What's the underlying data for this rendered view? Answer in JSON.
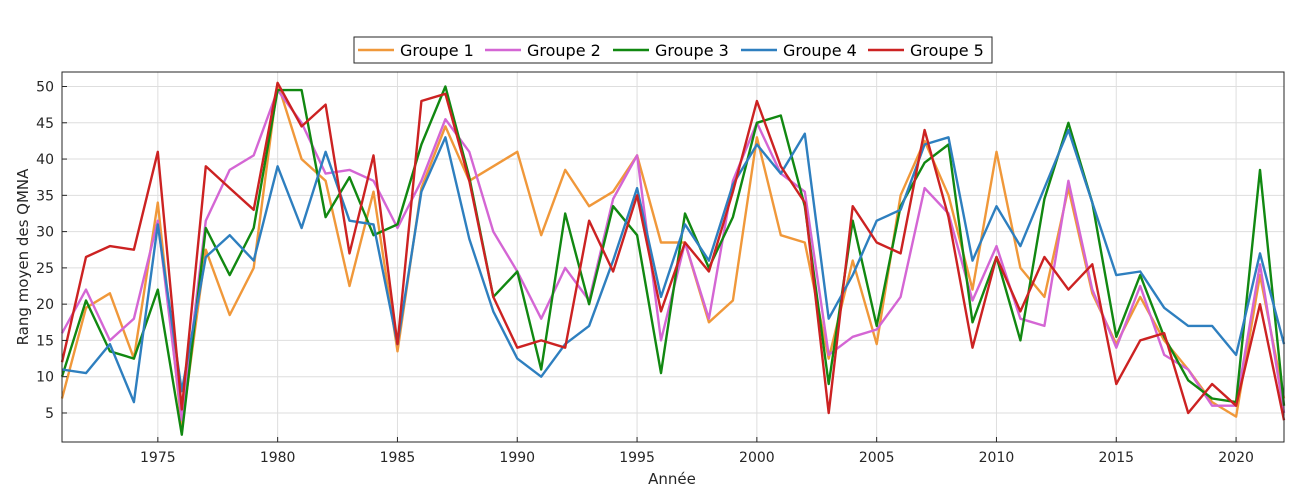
{
  "chart_data": {
    "type": "line",
    "xlabel": "Année",
    "ylabel": "Rang moyen des QMNA",
    "xlim": [
      1971,
      2022
    ],
    "ylim": [
      1,
      52
    ],
    "xticks": [
      1975,
      1980,
      1985,
      1990,
      1995,
      2000,
      2005,
      2010,
      2015,
      2020
    ],
    "yticks": [
      5,
      10,
      15,
      20,
      25,
      30,
      35,
      40,
      45,
      50
    ],
    "grid": true,
    "legend_position": "top-center",
    "x": [
      1971,
      1972,
      1973,
      1974,
      1975,
      1976,
      1977,
      1978,
      1979,
      1980,
      1981,
      1982,
      1983,
      1984,
      1985,
      1986,
      1987,
      1988,
      1989,
      1990,
      1991,
      1992,
      1993,
      1994,
      1995,
      1996,
      1997,
      1998,
      1999,
      2000,
      2001,
      2002,
      2003,
      2004,
      2005,
      2006,
      2007,
      2008,
      2009,
      2010,
      2011,
      2012,
      2013,
      2014,
      2015,
      2016,
      2017,
      2018,
      2019,
      2020,
      2021,
      2022
    ],
    "series": [
      {
        "name": "Groupe 1",
        "color": "#f0983a",
        "values": [
          7,
          19.5,
          21.5,
          12.5,
          34,
          3,
          27.5,
          18.5,
          25,
          50.5,
          40,
          37,
          22.5,
          35.5,
          13.5,
          36,
          44.5,
          37,
          39,
          41,
          29.5,
          38.5,
          33.5,
          35.5,
          40.5,
          28.5,
          28.5,
          17.5,
          20.5,
          43,
          29.5,
          28.5,
          12.5,
          26,
          14.5,
          35,
          42.5,
          35,
          22,
          41,
          25,
          21,
          36,
          21.5,
          14.5,
          21,
          15,
          11,
          6.5,
          4.5,
          24,
          7
        ]
      },
      {
        "name": "Groupe 2",
        "color": "#d466d4",
        "values": [
          16,
          22,
          15,
          18,
          31.5,
          4,
          31.5,
          38.5,
          40.5,
          49.5,
          45,
          38,
          38.5,
          37,
          30.5,
          37,
          45.5,
          41,
          30,
          24.5,
          18,
          25,
          20.5,
          34.5,
          40.5,
          15,
          28.5,
          18,
          37,
          45,
          38,
          35.5,
          13,
          15.5,
          16.5,
          21,
          36,
          32.5,
          20.5,
          28,
          18,
          17,
          37,
          22,
          14,
          22.5,
          13,
          11,
          6,
          6,
          25.5,
          5
        ]
      },
      {
        "name": "Groupe 3",
        "color": "#118811",
        "values": [
          10,
          20.5,
          13.5,
          12.5,
          22,
          2,
          30.5,
          24,
          30.5,
          49.5,
          49.5,
          32,
          37.5,
          29.5,
          31,
          42,
          50,
          37.5,
          21,
          24.5,
          11,
          32.5,
          20,
          33.5,
          29.5,
          10.5,
          32.5,
          25,
          32,
          45,
          46,
          33.5,
          9,
          31.5,
          17,
          33.5,
          39.5,
          42,
          17.5,
          26.5,
          15,
          34.5,
          45,
          34,
          15.5,
          24,
          15.5,
          9.5,
          7,
          6.5,
          38.5,
          6
        ]
      },
      {
        "name": "Groupe 4",
        "color": "#2e7fbf",
        "values": [
          11,
          10.5,
          14.5,
          6.5,
          31,
          8,
          26.5,
          29.5,
          26,
          39,
          30.5,
          41,
          31.5,
          31,
          14.5,
          35.5,
          43,
          29,
          19,
          12.5,
          10,
          14.5,
          17,
          26,
          36,
          21,
          31,
          26,
          36.5,
          42,
          38,
          43.5,
          18,
          24,
          31.5,
          33,
          42,
          43,
          26,
          33.5,
          28,
          36,
          44,
          34,
          24,
          24.5,
          19.5,
          17,
          17,
          13,
          27,
          14.5
        ]
      },
      {
        "name": "Groupe 5",
        "color": "#cc2222",
        "values": [
          12,
          26.5,
          28,
          27.5,
          41,
          5.5,
          39,
          36,
          33,
          50.5,
          44.5,
          47.5,
          27,
          40.5,
          14.5,
          48,
          49,
          37,
          21,
          14,
          15,
          14,
          31.5,
          24.5,
          35,
          19,
          28.5,
          24.5,
          35.5,
          48,
          39,
          34,
          5,
          33.5,
          28.5,
          27,
          44,
          32,
          14,
          26.5,
          19,
          26.5,
          22,
          25.5,
          9,
          15,
          16,
          5,
          9,
          6,
          20,
          4
        ]
      }
    ]
  }
}
